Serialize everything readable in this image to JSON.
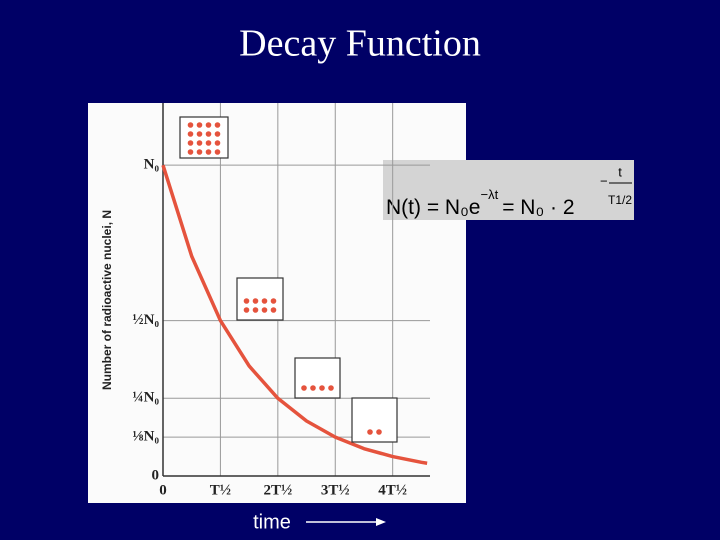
{
  "chart_data": {
    "type": "line",
    "title": "Decay Function",
    "ylabel": "Number of radioactive nuclei, N",
    "xlabel": "time",
    "formula": {
      "lhs": "N(t) = N₀e",
      "exp1": "−λt",
      "mid": "= N₀ · 2",
      "exp2_sign": "−",
      "exp2_num": "t",
      "exp2_den": "T1/2"
    },
    "x": [
      0,
      0.5,
      1,
      1.5,
      2,
      2.5,
      3,
      3.5,
      4,
      4.5,
      4.6
    ],
    "series": [
      {
        "color": "#e5533d",
        "values": [
          1,
          0.707,
          0.5,
          0.354,
          0.25,
          0.177,
          0.125,
          0.088,
          0.0625,
          0.044,
          0.041
        ]
      }
    ],
    "xlim": [
      0,
      4.65
    ],
    "ylim": [
      0,
      1.2
    ],
    "xticks": [
      0,
      {
        "value": 1,
        "label": "T½"
      },
      {
        "value": 2,
        "label": "2T½"
      },
      {
        "value": 3,
        "label": "3T½"
      },
      {
        "value": 4,
        "label": "4T½"
      }
    ],
    "yticks": [
      0,
      {
        "value": 0.125,
        "label": "⅛N₀"
      },
      {
        "value": 0.25,
        "label": "¼N₀"
      },
      {
        "value": 0.5,
        "label": "½N₀"
      },
      {
        "value": 1,
        "label": "N₀"
      }
    ],
    "grid": true
  }
}
